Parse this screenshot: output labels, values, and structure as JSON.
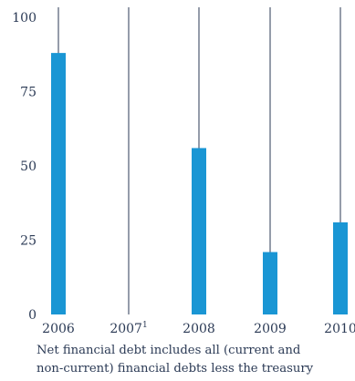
{
  "chart_data": {
    "type": "bar",
    "categories": [
      "2006",
      "2007",
      "2008",
      "2009",
      "2010"
    ],
    "category_footnote_marks": [
      "",
      "1",
      "",
      "",
      ""
    ],
    "values": [
      88,
      null,
      56,
      21,
      31
    ],
    "ylim": [
      0,
      100
    ],
    "yticks": [
      "0",
      "25",
      "50",
      "75",
      "100"
    ],
    "grid": "vertical lines at each category",
    "bar_color": "#1a96d4",
    "line_color": "#2b3a55",
    "title": "",
    "xlabel": "",
    "ylabel": ""
  },
  "footnote": {
    "line1": "Net financial debt includes all (current and",
    "line2": "non-current) financial debts less the treasury"
  }
}
